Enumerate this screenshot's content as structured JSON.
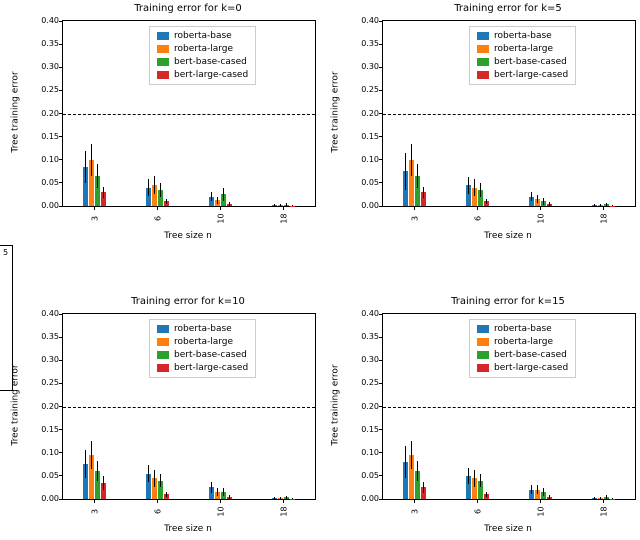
{
  "figure": {
    "background": "#ffffff",
    "partial_box": {
      "text": "5"
    }
  },
  "chart_data": [
    {
      "type": "bar",
      "title": "Training error for k=0",
      "xlabel": "Tree size n",
      "ylabel": "Tree training error",
      "categories": [
        "3",
        "6",
        "10",
        "18"
      ],
      "ylim": [
        0,
        0.4
      ],
      "yticks": [
        "0.00",
        "0.05",
        "0.10",
        "0.15",
        "0.20",
        "0.25",
        "0.30",
        "0.35",
        "0.40"
      ],
      "dashed_line_y": 0.2,
      "grid": false,
      "legend_position": "upper center",
      "series": [
        {
          "name": "roberta-base",
          "color": "#1f77b4",
          "values": [
            0.085,
            0.04,
            0.02,
            0.002
          ],
          "errors": [
            0.035,
            0.018,
            0.01,
            0.002
          ]
        },
        {
          "name": "roberta-large",
          "color": "#ff7f0e",
          "values": [
            0.1,
            0.045,
            0.012,
            0.002
          ],
          "errors": [
            0.035,
            0.02,
            0.008,
            0.002
          ]
        },
        {
          "name": "bert-base-cased",
          "color": "#2ca02c",
          "values": [
            0.065,
            0.035,
            0.025,
            0.003
          ],
          "errors": [
            0.025,
            0.015,
            0.015,
            0.003
          ]
        },
        {
          "name": "bert-large-cased",
          "color": "#d62728",
          "values": [
            0.03,
            0.01,
            0.005,
            0.001
          ],
          "errors": [
            0.012,
            0.006,
            0.004,
            0.001
          ]
        }
      ]
    },
    {
      "type": "bar",
      "title": "Training error for k=5",
      "xlabel": "Tree size n",
      "ylabel": "Tree training error",
      "categories": [
        "3",
        "6",
        "10",
        "18"
      ],
      "ylim": [
        0,
        0.4
      ],
      "yticks": [
        "0.00",
        "0.05",
        "0.10",
        "0.15",
        "0.20",
        "0.25",
        "0.30",
        "0.35",
        "0.40"
      ],
      "dashed_line_y": 0.2,
      "grid": false,
      "legend_position": "upper center",
      "series": [
        {
          "name": "roberta-base",
          "color": "#1f77b4",
          "values": [
            0.075,
            0.045,
            0.02,
            0.003
          ],
          "errors": [
            0.04,
            0.018,
            0.01,
            0.002
          ]
        },
        {
          "name": "roberta-large",
          "color": "#ff7f0e",
          "values": [
            0.1,
            0.04,
            0.015,
            0.002
          ],
          "errors": [
            0.035,
            0.018,
            0.008,
            0.002
          ]
        },
        {
          "name": "bert-base-cased",
          "color": "#2ca02c",
          "values": [
            0.065,
            0.035,
            0.01,
            0.004
          ],
          "errors": [
            0.025,
            0.015,
            0.008,
            0.003
          ]
        },
        {
          "name": "bert-large-cased",
          "color": "#d62728",
          "values": [
            0.03,
            0.01,
            0.005,
            0.001
          ],
          "errors": [
            0.012,
            0.006,
            0.004,
            0.001
          ]
        }
      ]
    },
    {
      "type": "bar",
      "title": "Training error for k=10",
      "xlabel": "Tree size n",
      "ylabel": "Tree training error",
      "categories": [
        "3",
        "6",
        "10",
        "18"
      ],
      "ylim": [
        0,
        0.4
      ],
      "yticks": [
        "0.00",
        "0.05",
        "0.10",
        "0.15",
        "0.20",
        "0.25",
        "0.30",
        "0.35",
        "0.40"
      ],
      "dashed_line_y": 0.2,
      "grid": false,
      "legend_position": "upper center",
      "series": [
        {
          "name": "roberta-base",
          "color": "#1f77b4",
          "values": [
            0.075,
            0.055,
            0.025,
            0.002
          ],
          "errors": [
            0.03,
            0.018,
            0.012,
            0.002
          ]
        },
        {
          "name": "roberta-large",
          "color": "#ff7f0e",
          "values": [
            0.095,
            0.045,
            0.015,
            0.002
          ],
          "errors": [
            0.03,
            0.018,
            0.008,
            0.002
          ]
        },
        {
          "name": "bert-base-cased",
          "color": "#2ca02c",
          "values": [
            0.06,
            0.04,
            0.015,
            0.004
          ],
          "errors": [
            0.022,
            0.015,
            0.008,
            0.003
          ]
        },
        {
          "name": "bert-large-cased",
          "color": "#d62728",
          "values": [
            0.035,
            0.01,
            0.005,
            0.001
          ],
          "errors": [
            0.015,
            0.006,
            0.004,
            0.001
          ]
        }
      ]
    },
    {
      "type": "bar",
      "title": "Training error for k=15",
      "xlabel": "Tree size n",
      "ylabel": "Tree training error",
      "categories": [
        "3",
        "6",
        "10",
        "18"
      ],
      "ylim": [
        0,
        0.4
      ],
      "yticks": [
        "0.00",
        "0.05",
        "0.10",
        "0.15",
        "0.20",
        "0.25",
        "0.30",
        "0.35",
        "0.40"
      ],
      "dashed_line_y": 0.2,
      "grid": false,
      "legend_position": "upper center",
      "series": [
        {
          "name": "roberta-base",
          "color": "#1f77b4",
          "values": [
            0.08,
            0.05,
            0.02,
            0.003
          ],
          "errors": [
            0.035,
            0.018,
            0.01,
            0.002
          ]
        },
        {
          "name": "roberta-large",
          "color": "#ff7f0e",
          "values": [
            0.095,
            0.045,
            0.02,
            0.002
          ],
          "errors": [
            0.03,
            0.018,
            0.01,
            0.002
          ]
        },
        {
          "name": "bert-base-cased",
          "color": "#2ca02c",
          "values": [
            0.06,
            0.04,
            0.015,
            0.005
          ],
          "errors": [
            0.022,
            0.015,
            0.008,
            0.004
          ]
        },
        {
          "name": "bert-large-cased",
          "color": "#d62728",
          "values": [
            0.025,
            0.01,
            0.005,
            0.001
          ],
          "errors": [
            0.012,
            0.006,
            0.004,
            0.001
          ]
        }
      ]
    }
  ]
}
